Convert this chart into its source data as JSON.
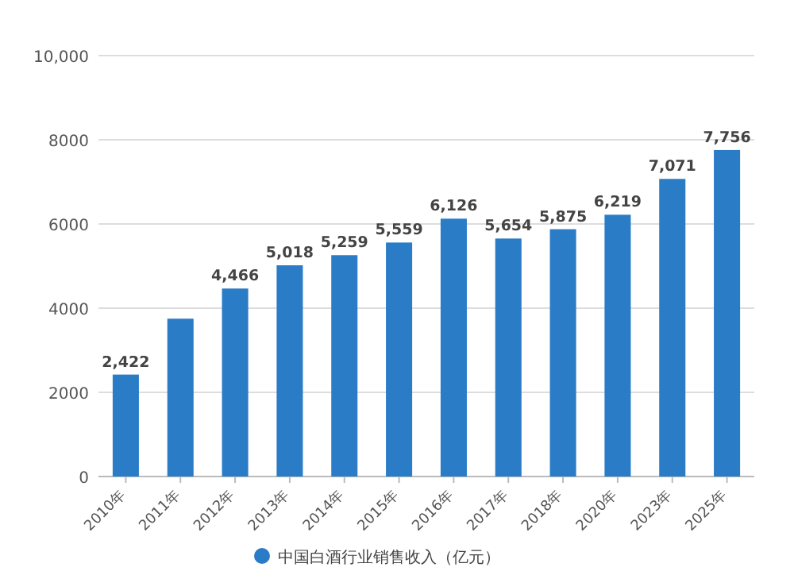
{
  "chart_data": {
    "type": "bar",
    "categories": [
      "2010年",
      "2011年",
      "2012年",
      "2013年",
      "2014年",
      "2015年",
      "2016年",
      "2017年",
      "2018年",
      "2020年",
      "2023年",
      "2025年"
    ],
    "series": [
      {
        "name": "中国白酒行业销售收入（亿元）",
        "color": "#2a7cc7",
        "values": [
          2422,
          3750,
          4466,
          5018,
          5259,
          5559,
          6126,
          5654,
          5875,
          6219,
          7071,
          7756
        ],
        "value_labels": [
          "2,422",
          null,
          "4,466",
          "5,018",
          "5,259",
          "5,559",
          "6,126",
          "5,654",
          "5,875",
          "6,219",
          "7,071",
          "7,756"
        ]
      }
    ],
    "ylim": [
      0,
      10000
    ],
    "yticks": [
      0,
      2000,
      4000,
      6000,
      8000,
      {
        "value": 10000,
        "label": "10,000"
      }
    ],
    "grid": "y",
    "legend": "bottom"
  }
}
